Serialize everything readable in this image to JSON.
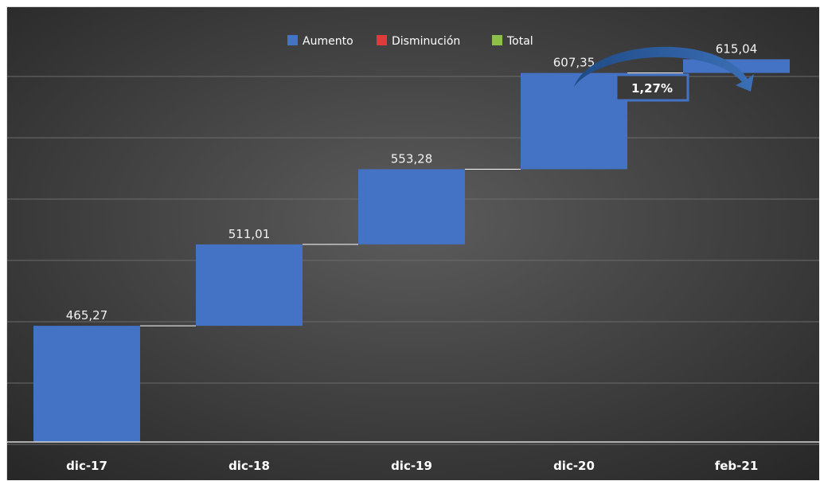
{
  "chart_data": {
    "type": "waterfall",
    "categories": [
      "dic-17",
      "dic-18",
      "dic-19",
      "dic-20",
      "feb-21"
    ],
    "base": [
      400,
      465.27,
      511.01,
      553.28,
      607.35
    ],
    "values": [
      465.27,
      511.01,
      553.28,
      607.35,
      615.04
    ],
    "labels": [
      "465,27",
      "511,01",
      "553,28",
      "607,35",
      "615,04"
    ],
    "ylim": [
      400,
      630
    ],
    "grid": true,
    "legend": {
      "position": "top-center",
      "entries": [
        {
          "label": "Aumento",
          "color": "#4472c4"
        },
        {
          "label": "Disminución",
          "color": "#e03a3a"
        },
        {
          "label": "Total",
          "color": "#8cc04a"
        }
      ]
    },
    "annotation": {
      "text": "1,27%"
    }
  },
  "colors": {
    "bar": "#4472c4",
    "background_center": "#595959",
    "background_edge": "#262626",
    "grid": "#6b6b6b",
    "connector": "#ffffff",
    "callout_arrow": "#2e5a96"
  }
}
